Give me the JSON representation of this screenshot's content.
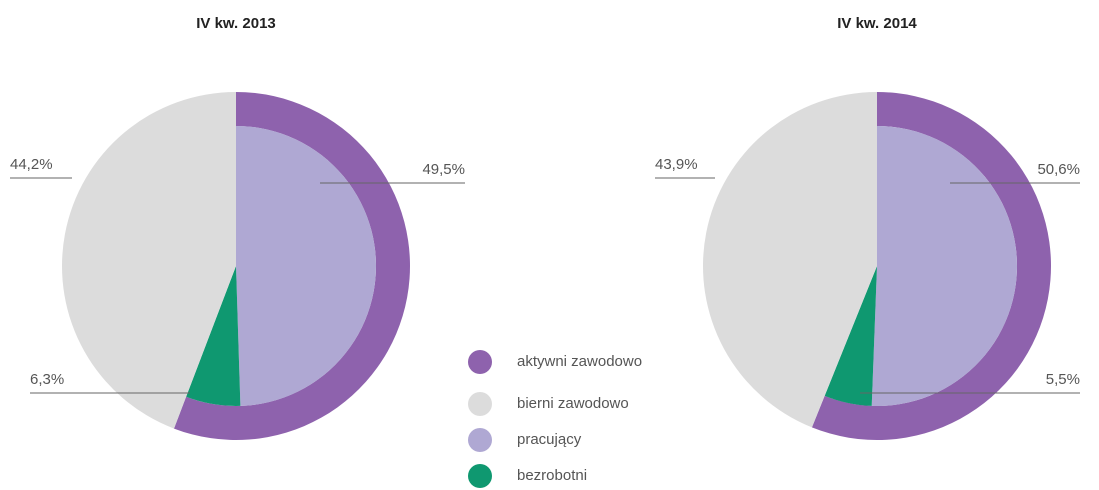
{
  "chart_data": [
    {
      "type": "pie",
      "title": "IV kw. 2013",
      "categories": [
        "pracujący",
        "bezrobotni",
        "bierni zawodowo"
      ],
      "values": [
        49.5,
        6.3,
        44.2
      ],
      "value_labels": [
        "49,5%",
        "6,3%",
        "44,2%"
      ],
      "colors": [
        "#afa8d3",
        "#0f9870",
        "#dcdcdc"
      ]
    },
    {
      "type": "pie",
      "title": "IV kw. 2014",
      "categories": [
        "pracujący",
        "bezrobotni",
        "bierni zawodowo"
      ],
      "values": [
        50.6,
        5.5,
        43.9
      ],
      "value_labels": [
        "50,6%",
        "5,5%",
        "43,9%"
      ],
      "colors": [
        "#afa8d3",
        "#0f9870",
        "#dcdcdc"
      ]
    }
  ],
  "legend": [
    {
      "name": "aktywni zawodowo",
      "color": "#8e62ad"
    },
    {
      "name": "bierni zawodowo",
      "color": "#dcdcdc"
    },
    {
      "name": "pracujący",
      "color": "#afa8d3"
    },
    {
      "name": "bezrobotni",
      "color": "#0f9870"
    }
  ]
}
